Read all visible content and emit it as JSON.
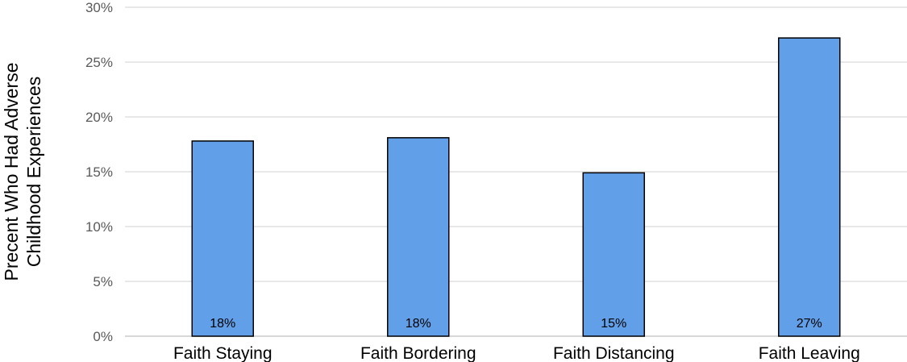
{
  "chart_data": {
    "type": "bar",
    "title": "",
    "xlabel": "",
    "ylabel_lines": [
      "Precent Who Had Adverse",
      "Childhood Experiences"
    ],
    "categories": [
      "Faith Staying",
      "Faith Bordering",
      "Faith Distancing",
      "Faith Leaving"
    ],
    "values": [
      17.8,
      18.1,
      14.9,
      27.2
    ],
    "data_labels": [
      "18%",
      "18%",
      "15%",
      "27%"
    ],
    "ylim": [
      0,
      30
    ],
    "yticks": [
      0,
      5,
      10,
      15,
      20,
      25,
      30
    ],
    "ytick_labels": [
      "0%",
      "5%",
      "10%",
      "15%",
      "20%",
      "25%",
      "30%"
    ],
    "grid": true,
    "legend": "none",
    "colors": {
      "bar_fill": "#619fe8",
      "bar_stroke": "#000000",
      "grid": "#d9d9d9",
      "tick_text": "#595959"
    }
  }
}
